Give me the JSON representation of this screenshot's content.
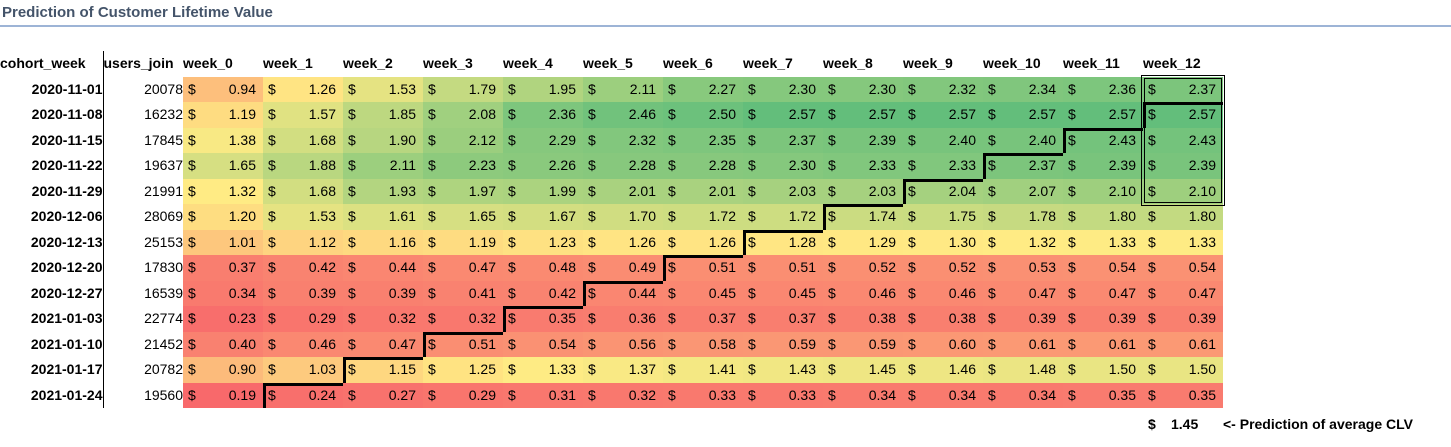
{
  "title": "Prediction of Customer Lifetime Value",
  "currency_symbol": "$",
  "headers": [
    "cohort_week",
    "users_join",
    "week_0",
    "week_1",
    "week_2",
    "week_3",
    "week_4",
    "week_5",
    "week_6",
    "week_7",
    "week_8",
    "week_9",
    "week_10",
    "week_11",
    "week_12"
  ],
  "rows": [
    {
      "cohort_week": "2020-11-01",
      "users_join": "20078",
      "values": [
        "0.94",
        "1.26",
        "1.53",
        "1.79",
        "1.95",
        "2.11",
        "2.27",
        "2.30",
        "2.30",
        "2.32",
        "2.34",
        "2.36",
        "2.37"
      ]
    },
    {
      "cohort_week": "2020-11-08",
      "users_join": "16232",
      "values": [
        "1.19",
        "1.57",
        "1.85",
        "2.08",
        "2.36",
        "2.46",
        "2.50",
        "2.57",
        "2.57",
        "2.57",
        "2.57",
        "2.57",
        "2.57"
      ]
    },
    {
      "cohort_week": "2020-11-15",
      "users_join": "17845",
      "values": [
        "1.38",
        "1.68",
        "1.90",
        "2.12",
        "2.29",
        "2.32",
        "2.35",
        "2.37",
        "2.39",
        "2.40",
        "2.40",
        "2.43",
        "2.43"
      ]
    },
    {
      "cohort_week": "2020-11-22",
      "users_join": "19637",
      "values": [
        "1.65",
        "1.88",
        "2.11",
        "2.23",
        "2.26",
        "2.28",
        "2.28",
        "2.30",
        "2.33",
        "2.33",
        "2.37",
        "2.39",
        "2.39"
      ]
    },
    {
      "cohort_week": "2020-11-29",
      "users_join": "21991",
      "values": [
        "1.32",
        "1.68",
        "1.93",
        "1.97",
        "1.99",
        "2.01",
        "2.01",
        "2.03",
        "2.03",
        "2.04",
        "2.07",
        "2.10",
        "2.10"
      ]
    },
    {
      "cohort_week": "2020-12-06",
      "users_join": "28069",
      "values": [
        "1.20",
        "1.53",
        "1.61",
        "1.65",
        "1.67",
        "1.70",
        "1.72",
        "1.72",
        "1.74",
        "1.75",
        "1.78",
        "1.80",
        "1.80"
      ]
    },
    {
      "cohort_week": "2020-12-13",
      "users_join": "25153",
      "values": [
        "1.01",
        "1.12",
        "1.16",
        "1.19",
        "1.23",
        "1.26",
        "1.26",
        "1.28",
        "1.29",
        "1.30",
        "1.32",
        "1.33",
        "1.33"
      ]
    },
    {
      "cohort_week": "2020-12-20",
      "users_join": "17830",
      "values": [
        "0.37",
        "0.42",
        "0.44",
        "0.47",
        "0.48",
        "0.49",
        "0.51",
        "0.51",
        "0.52",
        "0.52",
        "0.53",
        "0.54",
        "0.54"
      ]
    },
    {
      "cohort_week": "2020-12-27",
      "users_join": "16539",
      "values": [
        "0.34",
        "0.39",
        "0.39",
        "0.41",
        "0.42",
        "0.44",
        "0.45",
        "0.45",
        "0.46",
        "0.46",
        "0.47",
        "0.47",
        "0.47"
      ]
    },
    {
      "cohort_week": "2021-01-03",
      "users_join": "22774",
      "values": [
        "0.23",
        "0.29",
        "0.32",
        "0.32",
        "0.35",
        "0.36",
        "0.37",
        "0.37",
        "0.38",
        "0.38",
        "0.39",
        "0.39",
        "0.39"
      ]
    },
    {
      "cohort_week": "2021-01-10",
      "users_join": "21452",
      "values": [
        "0.40",
        "0.46",
        "0.47",
        "0.51",
        "0.54",
        "0.56",
        "0.58",
        "0.59",
        "0.59",
        "0.60",
        "0.61",
        "0.61",
        "0.61"
      ]
    },
    {
      "cohort_week": "2021-01-17",
      "users_join": "20782",
      "values": [
        "0.90",
        "1.03",
        "1.15",
        "1.25",
        "1.33",
        "1.37",
        "1.41",
        "1.43",
        "1.45",
        "1.46",
        "1.48",
        "1.50",
        "1.50"
      ]
    },
    {
      "cohort_week": "2021-01-24",
      "users_join": "19560",
      "values": [
        "0.19",
        "0.24",
        "0.27",
        "0.29",
        "0.31",
        "0.32",
        "0.33",
        "0.33",
        "0.34",
        "0.34",
        "0.34",
        "0.35",
        "0.35"
      ]
    }
  ],
  "footer": {
    "currency": "$",
    "value": "1.45",
    "label": "<- Prediction of average CLV"
  },
  "colors": {
    "low": "#F8696B",
    "mid": "#FFEB84",
    "high": "#63BE7B",
    "title": "#44546A"
  }
}
